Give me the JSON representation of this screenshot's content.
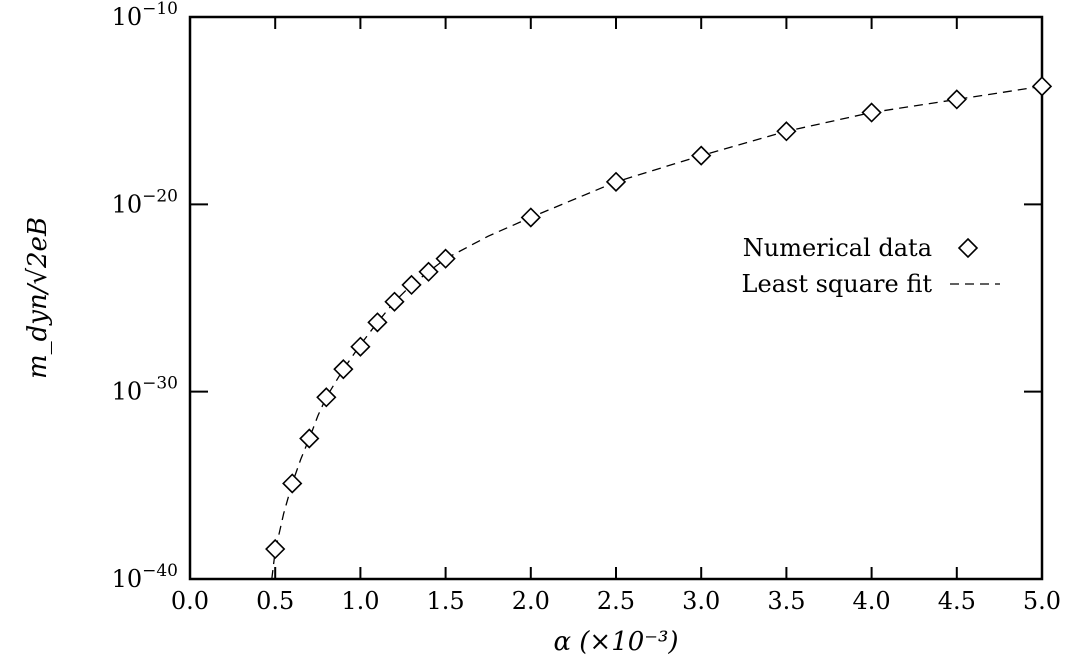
{
  "chart_data": {
    "type": "scatter",
    "x_label": "α (×10⁻³)",
    "y_label": "m_dyn/√2eB",
    "x_ticks": [
      "0.0",
      "0.5",
      "1.0",
      "1.5",
      "2.0",
      "2.5",
      "3.0",
      "3.5",
      "4.0",
      "4.5",
      "5.0"
    ],
    "x_tick_values": [
      0.0,
      0.5,
      1.0,
      1.5,
      2.0,
      2.5,
      3.0,
      3.5,
      4.0,
      4.5,
      5.0
    ],
    "y_ticks": [
      {
        "base": "10",
        "exp": "−40",
        "value": -40
      },
      {
        "base": "10",
        "exp": "−30",
        "value": -30
      },
      {
        "base": "10",
        "exp": "−20",
        "value": -20
      },
      {
        "base": "10",
        "exp": "−10",
        "value": -10
      }
    ],
    "xlim": [
      0.0,
      5.0
    ],
    "ylim_log10": [
      -40,
      -10
    ],
    "y_scale": "log",
    "grid": false,
    "legend_placement": "right-middle",
    "series": [
      {
        "name": "Numerical data",
        "kind": "markers",
        "marker": "diamond",
        "x": [
          0.5,
          0.6,
          0.7,
          0.8,
          0.9,
          1.0,
          1.1,
          1.2,
          1.3,
          1.4,
          1.5,
          2.0,
          2.5,
          3.0,
          3.5,
          4.0,
          4.5,
          5.0
        ],
        "log10_y": [
          -38.4,
          -34.9,
          -32.5,
          -30.3,
          -28.8,
          -27.6,
          -26.3,
          -25.2,
          -24.3,
          -23.6,
          -22.9,
          -20.7,
          -18.8,
          -17.4,
          -16.1,
          -15.1,
          -14.4,
          -13.7
        ]
      },
      {
        "name": "Least square fit",
        "kind": "line",
        "style": "dashed",
        "x": [
          0.48,
          0.5,
          0.55,
          0.6,
          0.65,
          0.7,
          0.75,
          0.8,
          0.9,
          1.0,
          1.1,
          1.2,
          1.3,
          1.4,
          1.5,
          1.75,
          2.0,
          2.5,
          3.0,
          3.5,
          4.0,
          4.5,
          5.0
        ],
        "log10_y": [
          -40.0,
          -38.5,
          -36.5,
          -34.9,
          -33.6,
          -32.5,
          -31.3,
          -30.3,
          -28.8,
          -27.5,
          -26.3,
          -25.2,
          -24.3,
          -23.6,
          -22.9,
          -21.7,
          -20.7,
          -18.8,
          -17.4,
          -16.1,
          -15.1,
          -14.4,
          -13.7
        ]
      }
    ]
  }
}
